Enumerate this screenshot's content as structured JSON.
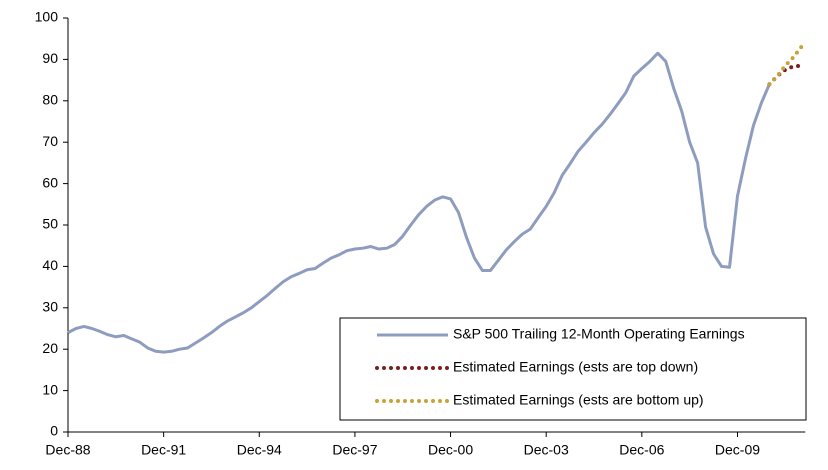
{
  "chart_data": {
    "type": "line",
    "categories": [
      "Dec-88",
      null,
      null,
      null,
      null,
      null,
      null,
      null,
      null,
      null,
      null,
      null,
      "Dec-91",
      null,
      null,
      null,
      null,
      null,
      null,
      null,
      null,
      null,
      null,
      null,
      "Dec-94",
      null,
      null,
      null,
      null,
      null,
      null,
      null,
      null,
      null,
      null,
      null,
      "Dec-97",
      null,
      null,
      null,
      null,
      null,
      null,
      null,
      null,
      null,
      null,
      null,
      "Dec-00",
      null,
      null,
      null,
      null,
      null,
      null,
      null,
      null,
      null,
      null,
      null,
      "Dec-03",
      null,
      null,
      null,
      null,
      null,
      null,
      null,
      null,
      null,
      null,
      null,
      "Dec-06",
      null,
      null,
      null,
      null,
      null,
      null,
      null,
      null,
      null,
      null,
      null,
      "Dec-09",
      null,
      null,
      null,
      null,
      null,
      null,
      null,
      null
    ],
    "series": [
      {
        "name": "S&P 500 Trailing 12-Month Operating Earnings",
        "color": "#8e9dbf",
        "line_style": "solid",
        "values": [
          24,
          25,
          25.5,
          25,
          24.3,
          23.5,
          23,
          23.3,
          22.5,
          21.7,
          20.3,
          19.5,
          19.3,
          19.5,
          20,
          20.3,
          21.5,
          22.7,
          24,
          25.5,
          26.8,
          27.8,
          28.8,
          30,
          31.5,
          33,
          34.7,
          36.3,
          37.5,
          38.3,
          39.2,
          39.5,
          40.8,
          42,
          42.8,
          43.8,
          44.2,
          44.4,
          44.8,
          44.2,
          44.4,
          45.3,
          47.3,
          50,
          52.5,
          54.5,
          56,
          56.8,
          56.3,
          53,
          47,
          42,
          39,
          39,
          41.5,
          44,
          46,
          47.8,
          49,
          51.8,
          54.5,
          57.8,
          62,
          64.8,
          67.8,
          70,
          72.3,
          74.3,
          76.7,
          79.3,
          82,
          86,
          87.8,
          89.5,
          91.5,
          89.5,
          83,
          77.5,
          70,
          65,
          49.5,
          43,
          40,
          39.8,
          57,
          66,
          74,
          79.5,
          84,
          null,
          null,
          null,
          null
        ]
      },
      {
        "name": "Estimated Earnings (ests are top down)",
        "color": "#7a1f1f",
        "line_style": "dotted",
        "values": [
          null,
          null,
          null,
          null,
          null,
          null,
          null,
          null,
          null,
          null,
          null,
          null,
          null,
          null,
          null,
          null,
          null,
          null,
          null,
          null,
          null,
          null,
          null,
          null,
          null,
          null,
          null,
          null,
          null,
          null,
          null,
          null,
          null,
          null,
          null,
          null,
          null,
          null,
          null,
          null,
          null,
          null,
          null,
          null,
          null,
          null,
          null,
          null,
          null,
          null,
          null,
          null,
          null,
          null,
          null,
          null,
          null,
          null,
          null,
          null,
          null,
          null,
          null,
          null,
          null,
          null,
          null,
          null,
          null,
          null,
          null,
          null,
          null,
          null,
          null,
          null,
          null,
          null,
          null,
          null,
          null,
          null,
          null,
          null,
          null,
          null,
          null,
          null,
          84,
          86,
          87.5,
          88.3,
          88.5
        ]
      },
      {
        "name": "Estimated Earnings (ests are bottom up)",
        "color": "#c9a23a",
        "line_style": "dotted",
        "values": [
          null,
          null,
          null,
          null,
          null,
          null,
          null,
          null,
          null,
          null,
          null,
          null,
          null,
          null,
          null,
          null,
          null,
          null,
          null,
          null,
          null,
          null,
          null,
          null,
          null,
          null,
          null,
          null,
          null,
          null,
          null,
          null,
          null,
          null,
          null,
          null,
          null,
          null,
          null,
          null,
          null,
          null,
          null,
          null,
          null,
          null,
          null,
          null,
          null,
          null,
          null,
          null,
          null,
          null,
          null,
          null,
          null,
          null,
          null,
          null,
          null,
          null,
          null,
          null,
          null,
          null,
          null,
          null,
          null,
          null,
          null,
          null,
          null,
          null,
          null,
          null,
          null,
          null,
          null,
          null,
          null,
          null,
          null,
          null,
          null,
          null,
          null,
          null,
          84,
          86,
          88.5,
          90.5,
          93
        ]
      }
    ],
    "ylim": [
      0,
      100
    ],
    "yticks": [
      0,
      10,
      20,
      30,
      40,
      50,
      60,
      70,
      80,
      90,
      100
    ],
    "grid": false,
    "legend": "lower right"
  }
}
